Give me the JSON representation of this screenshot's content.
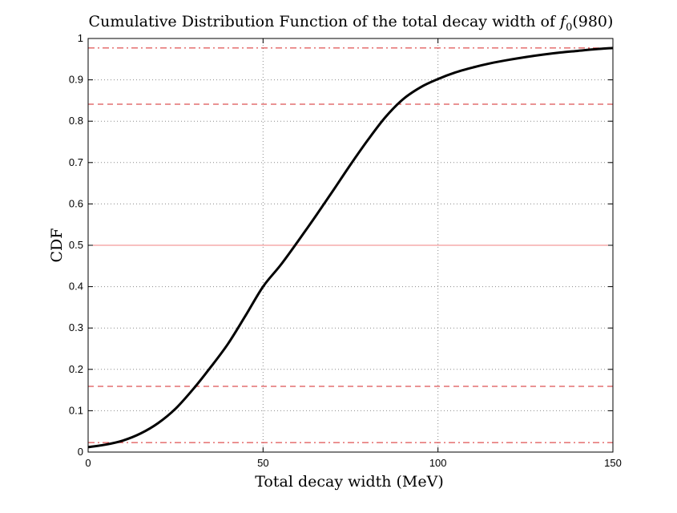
{
  "chart_data": {
    "type": "line",
    "title": "Cumulative Distribution Function of the total decay width of f0(980)",
    "title_parts": {
      "prefix": "Cumulative Distribution Function of the total decay width of ",
      "symbol": "f",
      "subscript": "0",
      "suffix": "(980)"
    },
    "xlabel": "Total decay width (MeV)",
    "ylabel": "CDF",
    "xlim": [
      0,
      150
    ],
    "ylim": [
      0,
      1
    ],
    "xticks": [
      0,
      50,
      100,
      150
    ],
    "yticks": [
      0,
      0.1,
      0.2,
      0.3,
      0.4,
      0.5,
      0.6,
      0.7,
      0.8,
      0.9,
      1
    ],
    "xtick_labels": [
      "0",
      "50",
      "100",
      "150"
    ],
    "ytick_labels": [
      "0",
      "0.1",
      "0.2",
      "0.3",
      "0.4",
      "0.5",
      "0.6",
      "0.7",
      "0.8",
      "0.9",
      "1"
    ],
    "grid": true,
    "series": [
      {
        "color": "#000000",
        "x": [
          0,
          5,
          10,
          15,
          20,
          25,
          30,
          35,
          40,
          45,
          50,
          55,
          60,
          65,
          70,
          75,
          80,
          85,
          90,
          95,
          100,
          105,
          110,
          115,
          120,
          125,
          130,
          135,
          140,
          145,
          150
        ],
        "y": [
          0.012,
          0.018,
          0.028,
          0.045,
          0.07,
          0.105,
          0.152,
          0.205,
          0.262,
          0.33,
          0.4,
          0.452,
          0.51,
          0.57,
          0.632,
          0.695,
          0.755,
          0.81,
          0.853,
          0.882,
          0.902,
          0.918,
          0.93,
          0.94,
          0.948,
          0.955,
          0.961,
          0.966,
          0.97,
          0.974,
          0.977
        ]
      }
    ],
    "reference_lines": [
      {
        "y": 0.977,
        "style": "dashdot",
        "color": "#d62728"
      },
      {
        "y": 0.841,
        "style": "dashed",
        "color": "#d62728"
      },
      {
        "y": 0.5,
        "style": "solid",
        "color": "#f08080"
      },
      {
        "y": 0.159,
        "style": "dashed",
        "color": "#d62728"
      },
      {
        "y": 0.023,
        "style": "dashdot",
        "color": "#d62728"
      }
    ]
  }
}
